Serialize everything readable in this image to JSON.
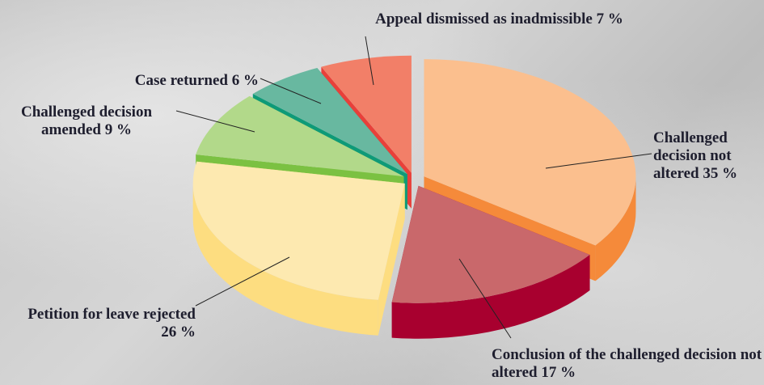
{
  "chart_data": {
    "type": "pie",
    "categories": [
      "Challenged decision not altered",
      "Conclusion of the challenged decision not altered",
      "Petition for leave rejected",
      "Challenged decision amended",
      "Case returned",
      "Appeal dismissed as inadmissible"
    ],
    "values": [
      35,
      17,
      26,
      9,
      6,
      7
    ],
    "value_labels": [
      "35 %",
      "17 %",
      "26 %",
      "9 %",
      "6 %",
      "7 %"
    ],
    "colors": [
      "#fbbf8e",
      "#c9686b",
      "#fde9b0",
      "#b2d98a",
      "#68b8a0",
      "#f27f68"
    ],
    "side_colors": [
      "#f58a3a",
      "#a8002f",
      "#fddd80",
      "#7bc142",
      "#0e9a78",
      "#e8403a"
    ]
  }
}
